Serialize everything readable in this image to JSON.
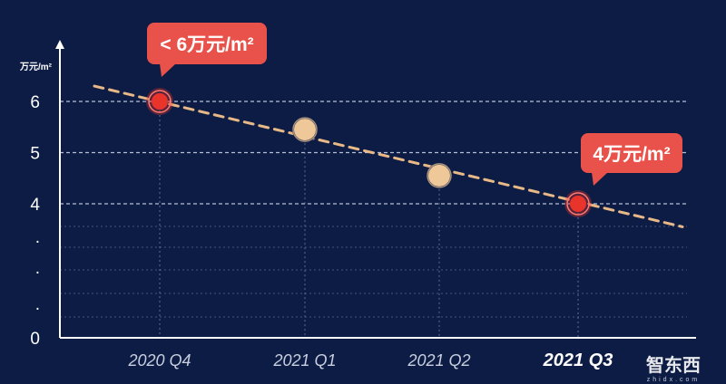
{
  "chart_data": {
    "type": "line",
    "y_unit": "万元/m²",
    "y_ticks": [
      "0",
      ".",
      ".",
      ".",
      "4",
      "5",
      "6"
    ],
    "categories": [
      "2020 Q4",
      "2021 Q1",
      "2021 Q2",
      "2021 Q3"
    ],
    "highlighted_category": "2021 Q3",
    "series": [
      {
        "values": [
          6.0,
          5.45,
          4.55,
          4.0
        ]
      }
    ],
    "trend_line": {
      "start_value": 6.3,
      "end_value": 3.55
    },
    "annotations": [
      {
        "category": "2020 Q4",
        "text": "< 6万元/m²"
      },
      {
        "category": "2021 Q3",
        "text": "4万元/m²"
      }
    ],
    "colors": {
      "background": "#0d1c44",
      "trend": "#e8b987",
      "point": "#efc89a",
      "highlight_point": "#e8342a",
      "callout": "#e8524a",
      "text": "#ffffff",
      "grid": "#c9d2e6"
    }
  },
  "watermark": "智东西"
}
